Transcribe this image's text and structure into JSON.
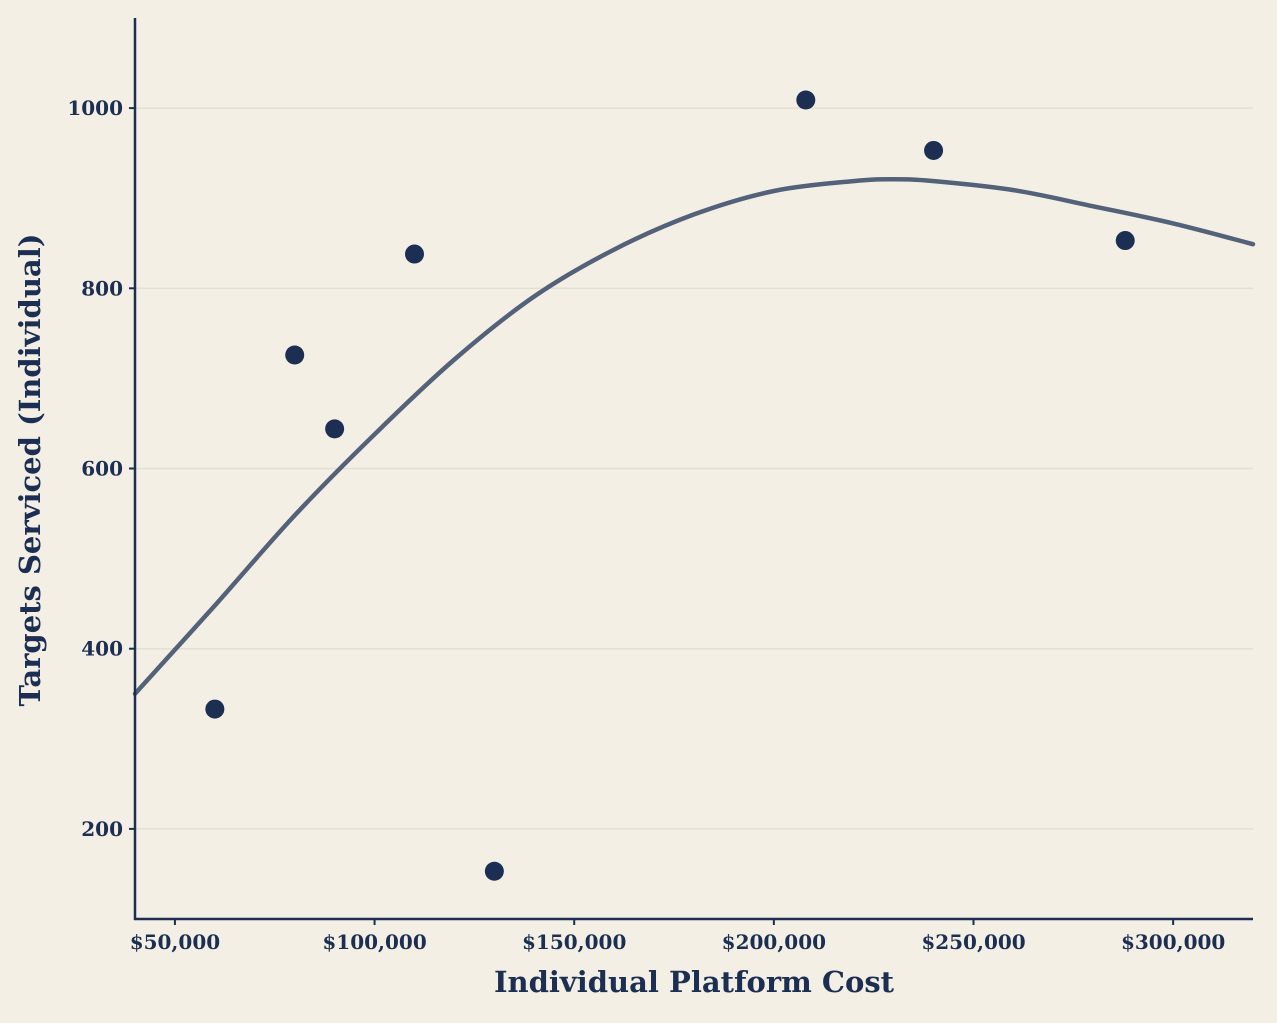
{
  "colors": {
    "background": "#f4efe5",
    "axis": "#1c2f52",
    "grid": "#e4dfd2",
    "points": "#1c2f52",
    "curve": "#4a5a72"
  },
  "chart_data": {
    "type": "scatter",
    "title": "",
    "xlabel": "Individual Platform Cost",
    "ylabel": "Targets Serviced (Individual)",
    "xlim": [
      40000,
      320000
    ],
    "ylim": [
      100,
      1100
    ],
    "grid": "horizontal",
    "x_ticks": [
      {
        "value": 50000,
        "label": "$50,000"
      },
      {
        "value": 100000,
        "label": "$100,000"
      },
      {
        "value": 150000,
        "label": "$150,000"
      },
      {
        "value": 200000,
        "label": "$200,000"
      },
      {
        "value": 250000,
        "label": "$250,000"
      },
      {
        "value": 300000,
        "label": "$300,000"
      }
    ],
    "y_ticks": [
      {
        "value": 200,
        "label": "200"
      },
      {
        "value": 400,
        "label": "400"
      },
      {
        "value": 600,
        "label": "600"
      },
      {
        "value": 800,
        "label": "800"
      },
      {
        "value": 1000,
        "label": "1000"
      }
    ],
    "points": [
      {
        "x": 60000,
        "y": 333
      },
      {
        "x": 80000,
        "y": 726
      },
      {
        "x": 90000,
        "y": 644
      },
      {
        "x": 110000,
        "y": 838
      },
      {
        "x": 130000,
        "y": 153
      },
      {
        "x": 208000,
        "y": 1009
      },
      {
        "x": 240000,
        "y": 953
      },
      {
        "x": 288000,
        "y": 853
      }
    ],
    "trend_curve": [
      {
        "x": 40000,
        "y": 350
      },
      {
        "x": 60000,
        "y": 448
      },
      {
        "x": 80000,
        "y": 548
      },
      {
        "x": 100000,
        "y": 638
      },
      {
        "x": 120000,
        "y": 721
      },
      {
        "x": 140000,
        "y": 791
      },
      {
        "x": 160000,
        "y": 843
      },
      {
        "x": 180000,
        "y": 882
      },
      {
        "x": 200000,
        "y": 908
      },
      {
        "x": 220000,
        "y": 919
      },
      {
        "x": 230000,
        "y": 921
      },
      {
        "x": 240000,
        "y": 919
      },
      {
        "x": 260000,
        "y": 909
      },
      {
        "x": 280000,
        "y": 891
      },
      {
        "x": 300000,
        "y": 872
      },
      {
        "x": 320000,
        "y": 849
      }
    ]
  }
}
